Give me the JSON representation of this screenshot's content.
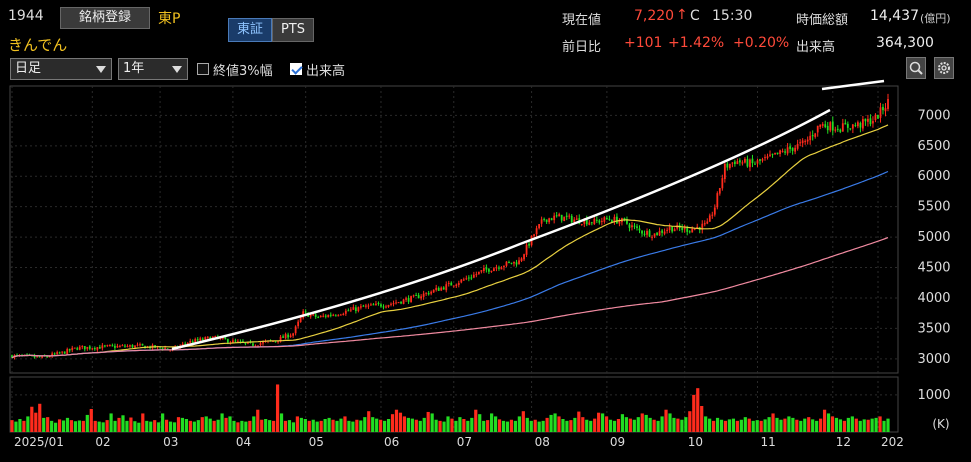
{
  "header": {
    "code": "1944",
    "register_label": "銘柄登録",
    "market": "東P",
    "name": "きんでん",
    "tabs": [
      {
        "label": "東証",
        "active": true
      },
      {
        "label": "PTS",
        "active": false
      }
    ]
  },
  "quote": {
    "price_label": "現在値",
    "price": "7,220",
    "price_arrow": "↑",
    "price_flag": "C",
    "time": "15:30",
    "mcap_label": "時価総額",
    "mcap": "14,437",
    "mcap_unit": "(億円)",
    "change_label": "前日比",
    "change": "+101",
    "change_pct": "+1.42%",
    "change_extra": "+0.20%",
    "volume_label": "出来高",
    "volume": "364,300"
  },
  "controls": {
    "interval": "日足",
    "period": "1年",
    "close3_label": "終値3%幅",
    "close3_checked": false,
    "volume_toggle_label": "出来高",
    "volume_toggle_checked": true,
    "zoom_icon": "zoom-icon",
    "settings_icon": "gear-icon"
  },
  "colors": {
    "up": "#ff2b1c",
    "down": "#22dd22",
    "ma_short": "#e8d040",
    "ma_mid": "#3a7be8",
    "ma_long": "#f08aa0",
    "trendline": "#ffffff"
  },
  "chart_data": {
    "type": "candlestick",
    "ylim": [
      2800,
      7450
    ],
    "y_ticks": [
      7000,
      6500,
      6000,
      5500,
      5000,
      4500,
      4000,
      3500,
      3000
    ],
    "x_labels": [
      "2025/01",
      "02",
      "03",
      "04",
      "05",
      "06",
      "07",
      "08",
      "09",
      "10",
      "11",
      "12",
      "202"
    ],
    "volume_ticks": [
      "1000"
    ],
    "volume_unit": "(K)",
    "volume_ylim": [
      0,
      1400
    ],
    "price_path": [
      [
        0,
        3050
      ],
      [
        12,
        3020
      ],
      [
        20,
        3100
      ],
      [
        26,
        3180
      ],
      [
        40,
        3200
      ],
      [
        50,
        3210
      ],
      [
        60,
        3180
      ],
      [
        64,
        3150
      ],
      [
        70,
        3270
      ],
      [
        80,
        3350
      ],
      [
        88,
        3280
      ],
      [
        95,
        3230
      ],
      [
        105,
        3300
      ],
      [
        112,
        3420
      ],
      [
        116,
        3750
      ],
      [
        122,
        3680
      ],
      [
        130,
        3750
      ],
      [
        140,
        3850
      ],
      [
        150,
        3900
      ],
      [
        160,
        4000
      ],
      [
        170,
        4150
      ],
      [
        180,
        4300
      ],
      [
        188,
        4450
      ],
      [
        196,
        4550
      ],
      [
        202,
        4600
      ],
      [
        208,
        5050
      ],
      [
        212,
        5300
      ],
      [
        218,
        5330
      ],
      [
        225,
        5280
      ],
      [
        232,
        5250
      ],
      [
        238,
        5300
      ],
      [
        244,
        5250
      ],
      [
        250,
        5100
      ],
      [
        256,
        5050
      ],
      [
        262,
        5150
      ],
      [
        270,
        5130
      ],
      [
        277,
        5200
      ],
      [
        280,
        5500
      ],
      [
        284,
        6150
      ],
      [
        288,
        6250
      ],
      [
        295,
        6200
      ],
      [
        302,
        6300
      ],
      [
        310,
        6450
      ],
      [
        316,
        6550
      ],
      [
        322,
        6850
      ],
      [
        330,
        6800
      ],
      [
        338,
        6850
      ],
      [
        344,
        6950
      ],
      [
        349,
        7220
      ]
    ],
    "volume": [
      320,
      280,
      350,
      300,
      420,
      680,
      520,
      760,
      380,
      400,
      300,
      250,
      340,
      310,
      380,
      320,
      290,
      310,
      300,
      460,
      620,
      300,
      280,
      260,
      320,
      500,
      300,
      380,
      450,
      300,
      390,
      290,
      250,
      500,
      300,
      280,
      320,
      260,
      500,
      330,
      280,
      260,
      400,
      380,
      350,
      300,
      280,
      320,
      400,
      420,
      360,
      300,
      330,
      500,
      380,
      420,
      300,
      260,
      300,
      280,
      300,
      420,
      600,
      330,
      350,
      320,
      300,
      1280,
      500,
      300,
      320,
      260,
      420,
      380,
      350,
      300,
      330,
      280,
      300,
      350,
      380,
      330,
      300,
      360,
      420,
      300,
      280,
      330,
      310,
      400,
      560,
      400,
      360,
      330,
      300,
      350,
      480,
      600,
      520,
      420,
      380,
      360,
      330,
      300,
      380,
      540,
      500,
      330,
      300,
      280,
      420,
      360,
      300,
      400,
      350,
      300,
      380,
      600,
      480,
      300,
      320,
      500,
      420,
      340,
      300,
      280,
      330,
      300,
      420,
      560,
      380,
      300,
      330,
      280,
      300,
      380,
      460,
      500,
      420,
      350,
      300,
      320,
      380,
      550,
      400,
      330,
      300,
      360,
      520,
      500,
      420,
      330,
      300,
      350,
      480,
      400,
      360,
      330,
      400,
      500,
      460,
      380,
      330,
      300,
      420,
      600,
      500,
      380,
      360,
      330,
      400,
      560,
      1000,
      1180,
      700,
      420,
      360,
      300,
      380,
      330,
      300,
      340,
      360,
      300,
      330,
      400,
      360,
      300,
      320,
      300,
      340,
      400,
      500,
      380,
      330,
      360,
      420,
      380,
      330,
      300,
      360,
      400,
      340,
      300,
      360,
      600,
      500,
      420,
      380,
      340,
      300,
      380,
      420,
      360,
      300,
      340,
      330,
      360,
      380,
      420,
      300,
      360
    ]
  }
}
